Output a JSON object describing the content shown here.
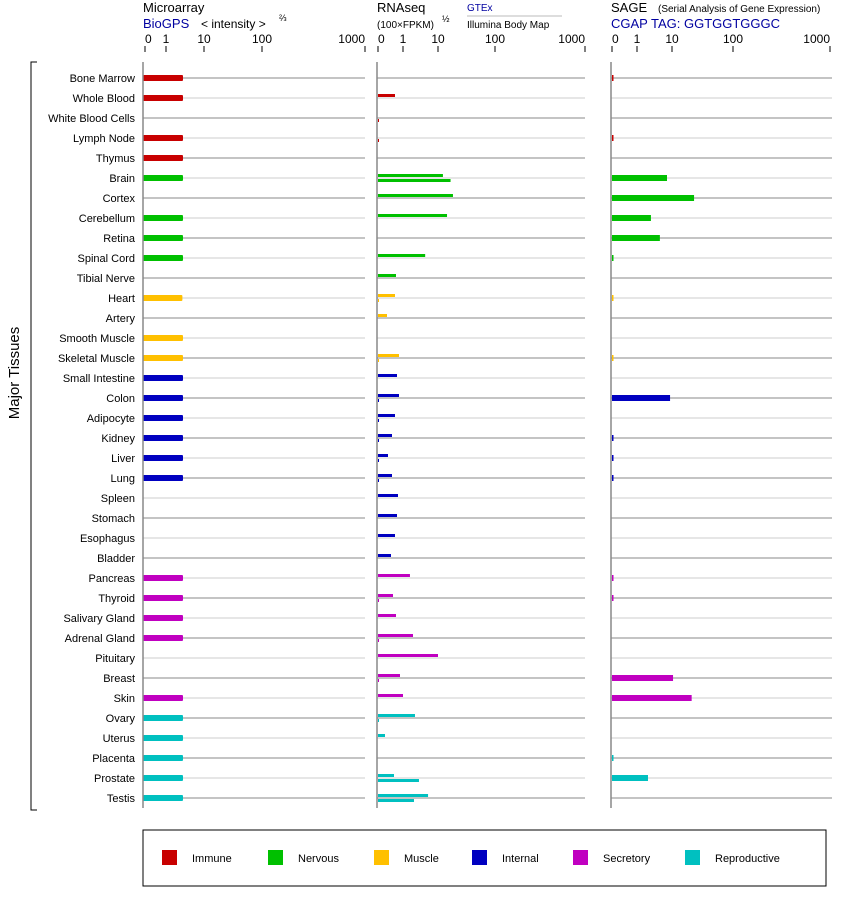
{
  "header": {
    "microarray": {
      "title": "Microarray",
      "source": "BioGPS",
      "scale_label": "< intensity >",
      "scale_exp": "⅔"
    },
    "rnaseq": {
      "title": "RNAseq",
      "scale_label": "(100×FPKM)",
      "scale_exp": "½",
      "source1": "GTEx",
      "source2": "Illumina Body Map"
    },
    "sage": {
      "title": "SAGE",
      "subtitle": "(Serial Analysis of Gene Expression)",
      "tag": "CGAP TAG: GGTGGTGGGC"
    }
  },
  "ytitle": "Major Tissues",
  "chart_data": {
    "type": "bar",
    "ticks": [
      "0",
      "1",
      "10",
      "100",
      "1000"
    ],
    "xlim": [
      0,
      1000
    ],
    "categories": {
      "Immune": "#c80000",
      "Nervous": "#00c000",
      "Muscle": "#ffc000",
      "Internal": "#0000c0",
      "Secretory": "#c000c0",
      "Reproductive": "#00c0c0"
    },
    "legend": [
      "Immune",
      "Nervous",
      "Muscle",
      "Internal",
      "Secretory",
      "Reproductive"
    ],
    "legend_position": "bottom",
    "tissues": [
      {
        "name": "Bone Marrow",
        "cat": "Immune",
        "micro": 2.8,
        "gtex": null,
        "illumina": null,
        "sage": 0.05
      },
      {
        "name": "Whole Blood",
        "cat": "Immune",
        "micro": 2.8,
        "gtex": 0.68,
        "illumina": null,
        "sage": null
      },
      {
        "name": "White Blood Cells",
        "cat": "Immune",
        "micro": null,
        "gtex": null,
        "illumina": 0.04,
        "sage": null
      },
      {
        "name": "Lymph Node",
        "cat": "Immune",
        "micro": 2.8,
        "gtex": null,
        "illumina": 0.04,
        "sage": 0.05
      },
      {
        "name": "Thymus",
        "cat": "Immune",
        "micro": 2.8,
        "gtex": null,
        "illumina": null,
        "sage": null
      },
      {
        "name": "Brain",
        "cat": "Nervous",
        "micro": 2.8,
        "gtex": 12.2,
        "illumina": 16.6,
        "sage": 7.2
      },
      {
        "name": "Cortex",
        "cat": "Nervous",
        "micro": null,
        "gtex": 18.3,
        "illumina": null,
        "sage": 23
      },
      {
        "name": "Cerebellum",
        "cat": "Nervous",
        "micro": 2.8,
        "gtex": 14.4,
        "illumina": null,
        "sage": 2.5
      },
      {
        "name": "Retina",
        "cat": "Nervous",
        "micro": 2.8,
        "gtex": null,
        "illumina": null,
        "sage": 4.5
      },
      {
        "name": "Spinal Cord",
        "cat": "Nervous",
        "micro": 2.8,
        "gtex": 4.3,
        "illumina": null,
        "sage": 0.05
      },
      {
        "name": "Tibial Nerve",
        "cat": "Nervous",
        "micro": null,
        "gtex": 0.72,
        "illumina": null,
        "sage": null
      },
      {
        "name": "Heart",
        "cat": "Muscle",
        "micro": 2.7,
        "gtex": 0.68,
        "illumina": 0.04,
        "sage": 0.05
      },
      {
        "name": "Artery",
        "cat": "Muscle",
        "micro": null,
        "gtex": 0.36,
        "illumina": null,
        "sage": null
      },
      {
        "name": "Smooth Muscle",
        "cat": "Muscle",
        "micro": 2.8,
        "gtex": null,
        "illumina": null,
        "sage": null
      },
      {
        "name": "Skeletal Muscle",
        "cat": "Muscle",
        "micro": 2.8,
        "gtex": 0.84,
        "illumina": 0.04,
        "sage": 0.05
      },
      {
        "name": "Small Intestine",
        "cat": "Internal",
        "micro": 2.8,
        "gtex": 0.76,
        "illumina": null,
        "sage": null
      },
      {
        "name": "Colon",
        "cat": "Internal",
        "micro": 2.8,
        "gtex": 0.84,
        "illumina": 0.04,
        "sage": 8.8
      },
      {
        "name": "Adipocyte",
        "cat": "Internal",
        "micro": 2.8,
        "gtex": 0.68,
        "illumina": 0.04,
        "sage": null
      },
      {
        "name": "Kidney",
        "cat": "Internal",
        "micro": 2.8,
        "gtex": 0.56,
        "illumina": 0.04,
        "sage": 0.05
      },
      {
        "name": "Liver",
        "cat": "Internal",
        "micro": 2.8,
        "gtex": 0.4,
        "illumina": 0.04,
        "sage": 0.05
      },
      {
        "name": "Lung",
        "cat": "Internal",
        "micro": 2.8,
        "gtex": 0.56,
        "illumina": 0.04,
        "sage": 0.05
      },
      {
        "name": "Spleen",
        "cat": "Internal",
        "micro": null,
        "gtex": 0.8,
        "illumina": null,
        "sage": null
      },
      {
        "name": "Stomach",
        "cat": "Internal",
        "micro": null,
        "gtex": 0.76,
        "illumina": null,
        "sage": null
      },
      {
        "name": "Esophagus",
        "cat": "Internal",
        "micro": null,
        "gtex": 0.68,
        "illumina": null,
        "sage": null
      },
      {
        "name": "Bladder",
        "cat": "Internal",
        "micro": null,
        "gtex": 0.52,
        "illumina": null,
        "sage": null
      },
      {
        "name": "Pancreas",
        "cat": "Secretory",
        "micro": 2.8,
        "gtex": 1.58,
        "illumina": null,
        "sage": 0.05
      },
      {
        "name": "Thyroid",
        "cat": "Secretory",
        "micro": 2.8,
        "gtex": 0.6,
        "illumina": 0.04,
        "sage": 0.05
      },
      {
        "name": "Salivary Gland",
        "cat": "Secretory",
        "micro": 2.8,
        "gtex": 0.72,
        "illumina": null,
        "sage": null
      },
      {
        "name": "Adrenal Gland",
        "cat": "Secretory",
        "micro": 2.8,
        "gtex": 1.93,
        "illumina": 0.04,
        "sage": null
      },
      {
        "name": "Pituitary",
        "cat": "Secretory",
        "micro": null,
        "gtex": 10,
        "illumina": null,
        "sage": null
      },
      {
        "name": "Breast",
        "cat": "Secretory",
        "micro": null,
        "gtex": 0.88,
        "illumina": 0.04,
        "sage": 10.4
      },
      {
        "name": "Skin",
        "cat": "Secretory",
        "micro": 2.8,
        "gtex": 1.0,
        "illumina": null,
        "sage": 21
      },
      {
        "name": "Ovary",
        "cat": "Reproductive",
        "micro": 2.8,
        "gtex": 2.2,
        "illumina": 0.04,
        "sage": null
      },
      {
        "name": "Uterus",
        "cat": "Reproductive",
        "micro": 2.8,
        "gtex": 0.28,
        "illumina": null,
        "sage": null
      },
      {
        "name": "Placenta",
        "cat": "Reproductive",
        "micro": 2.8,
        "gtex": null,
        "illumina": null,
        "sage": 0.05
      },
      {
        "name": "Prostate",
        "cat": "Reproductive",
        "micro": 2.8,
        "gtex": 0.64,
        "illumina": 2.86,
        "sage": 2.06
      },
      {
        "name": "Testis",
        "cat": "Reproductive",
        "micro": 2.8,
        "gtex": 5.2,
        "illumina": 2.06,
        "sage": null
      }
    ]
  }
}
